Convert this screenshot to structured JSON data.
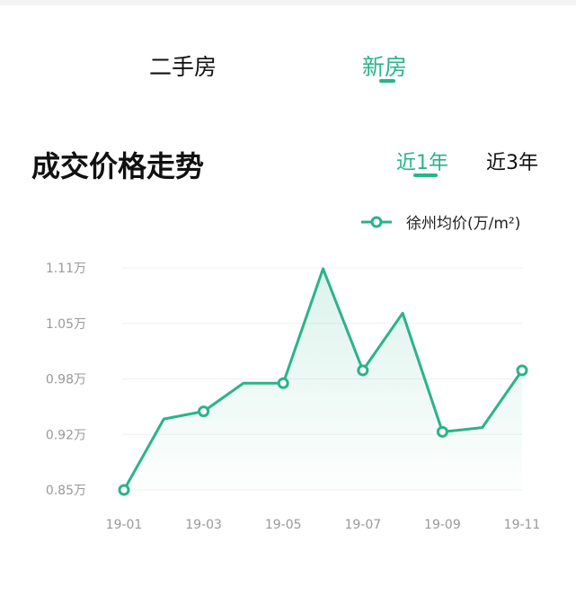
{
  "tabs": [
    {
      "label": "二手房",
      "active": false
    },
    {
      "label": "新房",
      "active": true
    }
  ],
  "section_title": "成交价格走势",
  "ranges": [
    {
      "label": "近1年",
      "active": true
    },
    {
      "label": "近3年",
      "active": false
    }
  ],
  "accent_color": "#2bb38a",
  "chart_data": {
    "type": "line",
    "legend": "徐州均价(万/m²)",
    "legend_position": "top-right",
    "x": [
      "19-01",
      "19-02",
      "19-03",
      "19-04",
      "19-05",
      "19-06",
      "19-07",
      "19-08",
      "19-09",
      "19-10",
      "19-11"
    ],
    "x_tick_labels": [
      "19-01",
      "19-03",
      "19-05",
      "19-07",
      "19-09",
      "19-11"
    ],
    "y_tick_labels": [
      "1.11万",
      "1.05万",
      "0.98万",
      "0.92万",
      "0.85万"
    ],
    "values": [
      0.85,
      0.933,
      0.942,
      0.975,
      0.975,
      1.109,
      0.99,
      1.057,
      0.918,
      0.923,
      0.99
    ],
    "ylim": [
      0.85,
      1.11
    ],
    "grid": true,
    "area_fill": true
  }
}
